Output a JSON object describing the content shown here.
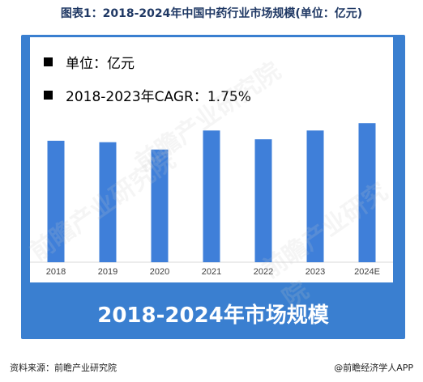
{
  "title": "图表1：2018-2024年中国中药行业市场规模(单位：亿元)",
  "legend": {
    "unit_line": "单位：亿元",
    "cagr_line": "2018-2023年CAGR：1.75%"
  },
  "banner": "2018-2024年市场规模",
  "footer": {
    "source": "资料来源：前瞻产业研究院",
    "brand": "@前瞻经济学人APP"
  },
  "watermark": "前瞻产业研究院",
  "chart_data": {
    "type": "bar",
    "categories": [
      "2018",
      "2019",
      "2020",
      "2021",
      "2022",
      "2023",
      "2024E"
    ],
    "values": [
      83,
      82,
      77,
      90,
      84,
      90,
      95
    ],
    "title": "2018-2024年市场规模",
    "ylim": [
      0,
      120
    ],
    "grid": false,
    "bar_color": "#3f7fd9"
  }
}
